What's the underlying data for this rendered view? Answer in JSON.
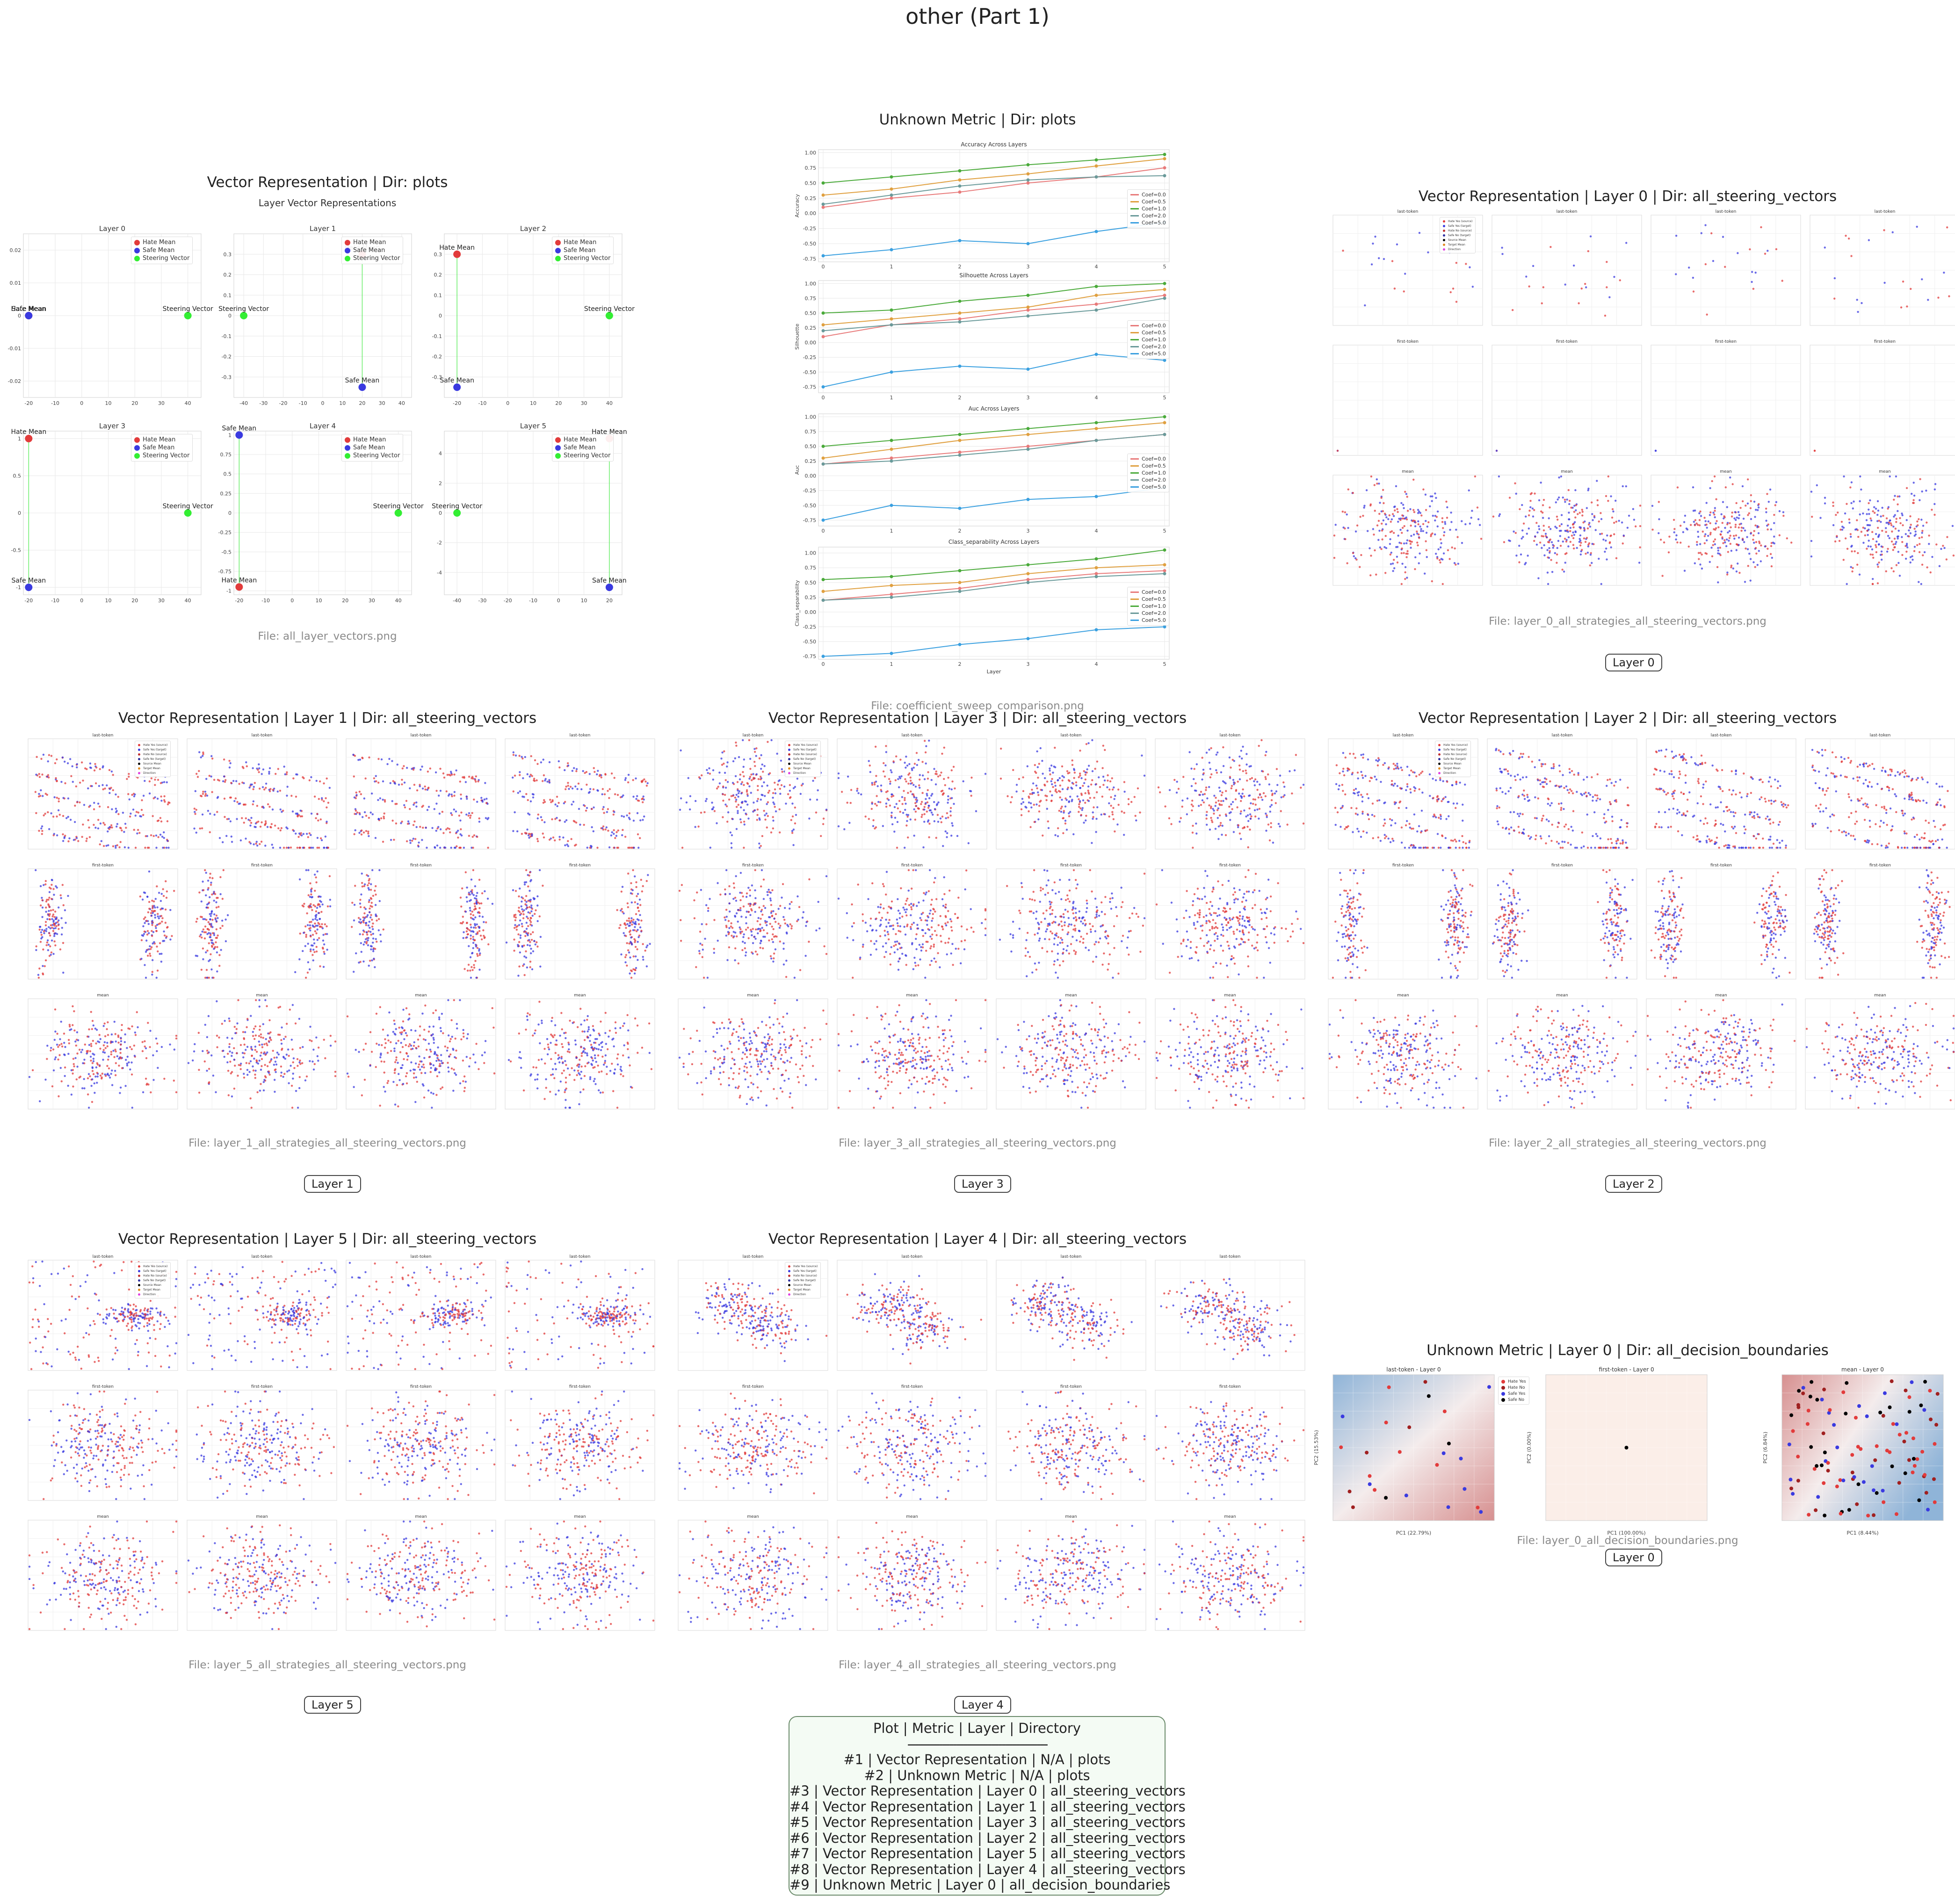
{
  "page": {
    "title": "other (Part 1)"
  },
  "colors": {
    "hate": "#e23b3b",
    "safe": "#3a3ae0",
    "steer": "#33ee33",
    "grid": "#e8e8e8"
  },
  "panels": [
    {
      "id": "p1",
      "title": "Vector Representation | Dir: plots",
      "file": "File: all_layer_vectors.png",
      "badge": ""
    },
    {
      "id": "p2",
      "title": "Unknown Metric | Dir: plots",
      "file": "File: coefficient_sweep_comparison.png",
      "badge": ""
    },
    {
      "id": "p3",
      "title": "Vector Representation | Layer 0 | Dir: all_steering_vectors",
      "file": "File: layer_0_all_strategies_all_steering_vectors.png",
      "badge": "Layer 0"
    },
    {
      "id": "p4",
      "title": "Vector Representation | Layer 1 | Dir: all_steering_vectors",
      "file": "File: layer_1_all_strategies_all_steering_vectors.png",
      "badge": "Layer 1"
    },
    {
      "id": "p5",
      "title": "Vector Representation | Layer 3 | Dir: all_steering_vectors",
      "file": "File: layer_3_all_strategies_all_steering_vectors.png",
      "badge": "Layer 3"
    },
    {
      "id": "p6",
      "title": "Vector Representation | Layer 2 | Dir: all_steering_vectors",
      "file": "File: layer_2_all_strategies_all_steering_vectors.png",
      "badge": "Layer 2"
    },
    {
      "id": "p7",
      "title": "Vector Representation | Layer 5 | Dir: all_steering_vectors",
      "file": "File: layer_5_all_strategies_all_steering_vectors.png",
      "badge": "Layer 5"
    },
    {
      "id": "p8",
      "title": "Vector Representation | Layer 4 | Dir: all_steering_vectors",
      "file": "File: layer_4_all_strategies_all_steering_vectors.png",
      "badge": "Layer 4"
    },
    {
      "id": "p9",
      "title": "Unknown Metric | Layer 0 | Dir: all_decision_boundaries",
      "file": "File: layer_0_all_decision_boundaries.png",
      "badge": "Layer 0"
    }
  ],
  "layer_vectors": {
    "suptitle": "Layer Vector Representations",
    "legend": [
      "Hate Mean",
      "Safe Mean",
      "Steering Vector"
    ],
    "point_labels": {
      "hate": "Hate Mean",
      "safe": "Safe Mean",
      "steer": "Steering Vector"
    }
  },
  "coef_sweep": {
    "legend": [
      "Coef=0.0",
      "Coef=0.5",
      "Coef=1.0",
      "Coef=2.0",
      "Coef=5.0"
    ],
    "xlabel": "Layer"
  },
  "steering_grid": {
    "row_titles": [
      "last-token",
      "first-token",
      "mean"
    ],
    "legend": [
      "Hate Yes (source)",
      "Safe Yes (target)",
      "Hate No (source)",
      "Safe No (target)",
      "Source Mean",
      "Target Mean",
      "Direction"
    ]
  },
  "decision_boundaries": {
    "subtitles": [
      "last-token - Layer 0",
      "first-token - Layer 0",
      "mean - Layer 0"
    ],
    "legend": [
      "Hate Yes",
      "Hate No",
      "Safe Yes",
      "Safe No"
    ],
    "xlabels": [
      "PC1 (22.79%)",
      "PC1 (100.00%)",
      "PC1 (8.44%)"
    ]
  },
  "summary": {
    "header": "Plot | Metric | Layer | Directory",
    "separator": "----------------------------------------",
    "rows": [
      "#1 | Vector Representation | N/A | plots",
      "#2 | Unknown Metric | N/A | plots",
      "#3 | Vector Representation | Layer 0 | all_steering_vectors",
      "#4 | Vector Representation | Layer 1 | all_steering_vectors",
      "#5 | Vector Representation | Layer 3 | all_steering_vectors",
      "#6 | Vector Representation | Layer 2 | all_steering_vectors",
      "#7 | Vector Representation | Layer 5 | all_steering_vectors",
      "#8 | Vector Representation | Layer 4 | all_steering_vectors",
      "#9 | Unknown Metric | Layer 0 | all_decision_boundaries"
    ]
  },
  "chart_data": [
    {
      "type": "scatter",
      "panel": "all_layer_vectors",
      "title": "Layer Vector Representations",
      "subplots": [
        {
          "title": "Layer 0",
          "xlim": [
            -22,
            45
          ],
          "ylim": [
            -0.025,
            0.025
          ],
          "yticks": [
            -0.02,
            -0.01,
            0.0,
            0.01,
            0.02
          ],
          "xticks": [
            -20,
            -10,
            0,
            10,
            20,
            30,
            40
          ],
          "points": {
            "hate": [
              -20,
              0.0
            ],
            "safe": [
              -20,
              0.0
            ],
            "steer": [
              40,
              0.0
            ]
          }
        },
        {
          "title": "Layer 1",
          "xlim": [
            -45,
            45
          ],
          "ylim": [
            -0.4,
            0.4
          ],
          "yticks": [
            -0.3,
            -0.2,
            -0.1,
            0.0,
            0.1,
            0.2,
            0.3
          ],
          "xticks": [
            -40,
            -30,
            -20,
            -10,
            0,
            10,
            20,
            30,
            40
          ],
          "points": {
            "hate": [
              20,
              0.3
            ],
            "safe": [
              20,
              -0.35
            ],
            "steer": [
              -40,
              0.0
            ]
          }
        },
        {
          "title": "Layer 2",
          "xlim": [
            -25,
            45
          ],
          "ylim": [
            -0.4,
            0.4
          ],
          "yticks": [
            -0.3,
            -0.2,
            -0.1,
            0.0,
            0.1,
            0.2,
            0.3
          ],
          "xticks": [
            -20,
            -10,
            0,
            10,
            20,
            30,
            40
          ],
          "points": {
            "hate": [
              -20,
              0.3
            ],
            "safe": [
              -20,
              -0.35
            ],
            "steer": [
              40,
              0.0
            ]
          }
        },
        {
          "title": "Layer 3",
          "xlim": [
            -22,
            45
          ],
          "ylim": [
            -1.1,
            1.1
          ],
          "yticks": [
            -1.0,
            -0.5,
            0.0,
            0.5,
            1.0
          ],
          "xticks": [
            -20,
            -10,
            0,
            10,
            20,
            30,
            40
          ],
          "points": {
            "hate": [
              -20,
              1.0
            ],
            "safe": [
              -20,
              -1.0
            ],
            "steer": [
              40,
              0.0
            ]
          }
        },
        {
          "title": "Layer 4",
          "xlim": [
            -22,
            45
          ],
          "ylim": [
            -1.05,
            1.05
          ],
          "yticks": [
            -1.0,
            -0.75,
            -0.5,
            -0.25,
            0.0,
            0.25,
            0.5,
            0.75,
            1.0
          ],
          "xticks": [
            -20,
            -10,
            0,
            10,
            20,
            30,
            40
          ],
          "points": {
            "hate": [
              -20,
              -0.95
            ],
            "safe": [
              -20,
              1.0
            ],
            "steer": [
              40,
              0.0
            ]
          }
        },
        {
          "title": "Layer 5",
          "xlim": [
            -45,
            25
          ],
          "ylim": [
            -5.5,
            5.5
          ],
          "yticks": [
            -4,
            -2,
            0,
            2,
            4
          ],
          "xticks": [
            -40,
            -30,
            -20,
            -10,
            0,
            10,
            20
          ],
          "points": {
            "hate": [
              20,
              5.0
            ],
            "safe": [
              20,
              -5.0
            ],
            "steer": [
              -40,
              0.0
            ]
          }
        }
      ]
    },
    {
      "type": "line",
      "panel": "coefficient_sweep_comparison",
      "x": [
        0,
        1,
        2,
        3,
        4,
        5
      ],
      "xlabel": "Layer",
      "subplots": [
        {
          "title": "Accuracy Across Layers",
          "ylabel": "Accuracy",
          "ylim": [
            -0.8,
            1.05
          ],
          "yticks": [
            -0.75,
            -0.5,
            -0.25,
            0.0,
            0.25,
            0.5,
            0.75,
            1.0
          ],
          "series": [
            {
              "name": "Coef=0.0",
              "values": [
                0.1,
                0.25,
                0.35,
                0.5,
                0.6,
                0.75
              ]
            },
            {
              "name": "Coef=0.5",
              "values": [
                0.3,
                0.4,
                0.55,
                0.65,
                0.78,
                0.9
              ]
            },
            {
              "name": "Coef=1.0",
              "values": [
                0.5,
                0.6,
                0.7,
                0.8,
                0.88,
                0.97
              ]
            },
            {
              "name": "Coef=2.0",
              "values": [
                0.15,
                0.3,
                0.45,
                0.55,
                0.6,
                0.62
              ]
            },
            {
              "name": "Coef=5.0",
              "values": [
                -0.7,
                -0.6,
                -0.45,
                -0.5,
                -0.3,
                -0.15
              ]
            }
          ]
        },
        {
          "title": "Silhouette Across Layers",
          "ylabel": "Silhouette",
          "ylim": [
            -0.85,
            1.05
          ],
          "yticks": [
            -0.75,
            -0.5,
            -0.25,
            0.0,
            0.25,
            0.5,
            0.75,
            1.0
          ],
          "series": [
            {
              "name": "Coef=0.0",
              "values": [
                0.1,
                0.3,
                0.4,
                0.55,
                0.65,
                0.8
              ]
            },
            {
              "name": "Coef=0.5",
              "values": [
                0.3,
                0.4,
                0.5,
                0.6,
                0.8,
                0.9
              ]
            },
            {
              "name": "Coef=1.0",
              "values": [
                0.5,
                0.55,
                0.7,
                0.8,
                0.95,
                1.0
              ]
            },
            {
              "name": "Coef=2.0",
              "values": [
                0.2,
                0.3,
                0.35,
                0.45,
                0.55,
                0.75
              ]
            },
            {
              "name": "Coef=5.0",
              "values": [
                -0.75,
                -0.5,
                -0.4,
                -0.45,
                -0.2,
                -0.3
              ]
            }
          ]
        },
        {
          "title": "Auc Across Layers",
          "ylabel": "Auc",
          "ylim": [
            -0.85,
            1.05
          ],
          "yticks": [
            -0.75,
            -0.5,
            -0.25,
            0.0,
            0.25,
            0.5,
            0.75,
            1.0
          ],
          "series": [
            {
              "name": "Coef=0.0",
              "values": [
                0.2,
                0.3,
                0.4,
                0.5,
                0.6,
                0.7
              ]
            },
            {
              "name": "Coef=0.5",
              "values": [
                0.3,
                0.45,
                0.6,
                0.7,
                0.8,
                0.9
              ]
            },
            {
              "name": "Coef=1.0",
              "values": [
                0.5,
                0.6,
                0.7,
                0.8,
                0.9,
                1.0
              ]
            },
            {
              "name": "Coef=2.0",
              "values": [
                0.2,
                0.25,
                0.35,
                0.45,
                0.6,
                0.7
              ]
            },
            {
              "name": "Coef=5.0",
              "values": [
                -0.75,
                -0.5,
                -0.55,
                -0.4,
                -0.35,
                -0.2
              ]
            }
          ]
        },
        {
          "title": "Class_separability Across Layers",
          "ylabel": "Class_separability",
          "ylim": [
            -0.8,
            1.1
          ],
          "yticks": [
            -0.75,
            -0.5,
            -0.25,
            0.0,
            0.25,
            0.5,
            0.75,
            1.0
          ],
          "series": [
            {
              "name": "Coef=0.0",
              "values": [
                0.2,
                0.3,
                0.4,
                0.55,
                0.65,
                0.7
              ]
            },
            {
              "name": "Coef=0.5",
              "values": [
                0.35,
                0.45,
                0.5,
                0.65,
                0.75,
                0.8
              ]
            },
            {
              "name": "Coef=1.0",
              "values": [
                0.55,
                0.6,
                0.7,
                0.8,
                0.9,
                1.05
              ]
            },
            {
              "name": "Coef=2.0",
              "values": [
                0.2,
                0.25,
                0.35,
                0.5,
                0.6,
                0.65
              ]
            },
            {
              "name": "Coef=5.0",
              "values": [
                -0.75,
                -0.7,
                -0.55,
                -0.45,
                -0.3,
                -0.25
              ]
            }
          ]
        }
      ]
    },
    {
      "type": "scatter",
      "panel": "decision_boundaries_layer_0",
      "subplots": [
        {
          "title": "last-token - Layer 0",
          "xlabel": "PC1 (22.79%)",
          "ylabel": "PC2 (15.53%)"
        },
        {
          "title": "first-token - Layer 0",
          "xlabel": "PC1 (100.00%)",
          "ylabel": "PC2 (0.00%)",
          "xlim": [
            -1.0,
            1.0
          ],
          "ylim": [
            -1.0,
            1.0
          ]
        },
        {
          "title": "mean - Layer 0",
          "xlabel": "PC1 (8.44%)",
          "ylabel": "PC2 (6.84%)"
        }
      ]
    }
  ]
}
